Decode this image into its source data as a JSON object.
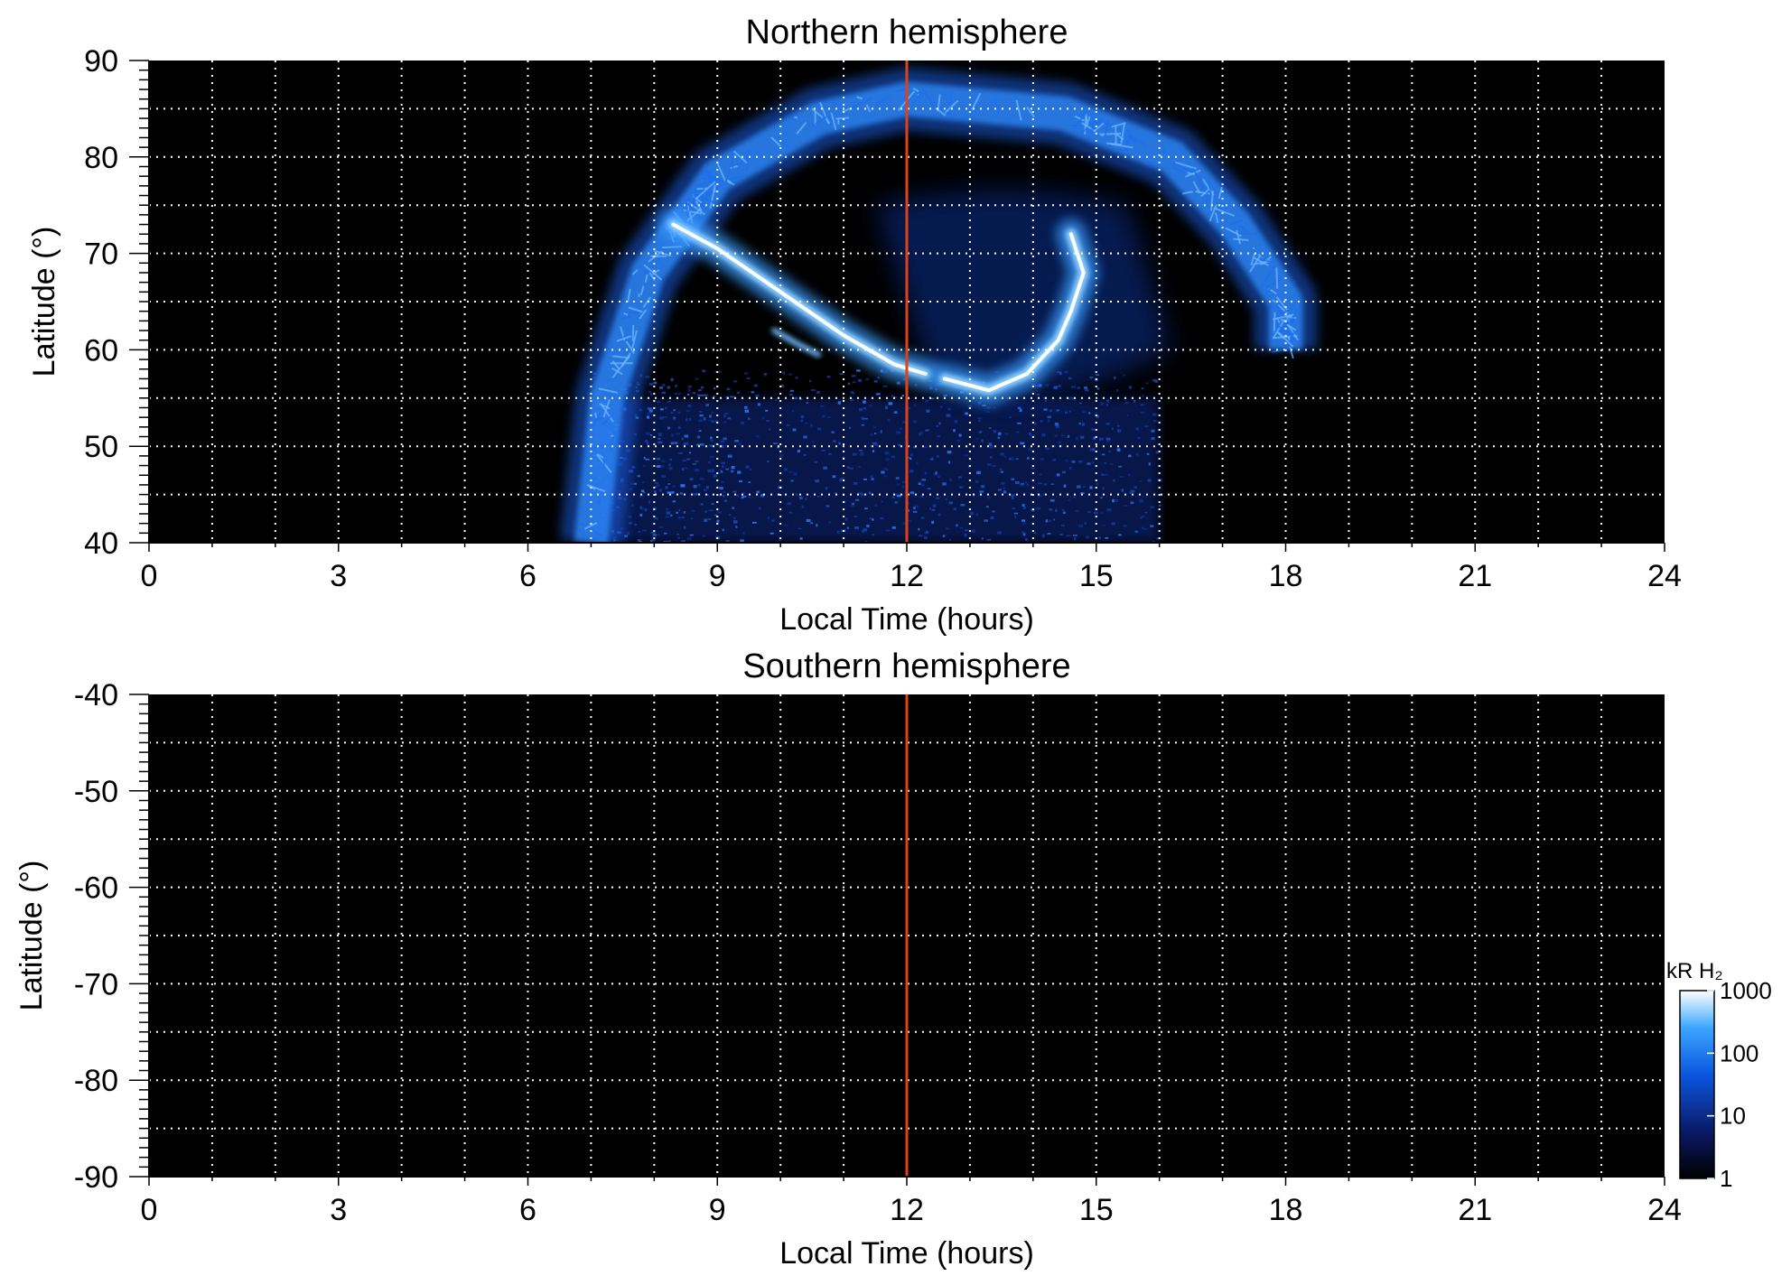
{
  "chart_data": [
    {
      "type": "heatmap",
      "title": "Northern hemisphere",
      "xlabel": "Local Time (hours)",
      "ylabel": "Latitude (°)",
      "xlim": [
        0,
        24
      ],
      "ylim": [
        40,
        90
      ],
      "xticks": [
        0,
        3,
        6,
        9,
        12,
        15,
        18,
        21,
        24
      ],
      "xtick_labels": [
        "0",
        "3",
        "6",
        "9",
        "12",
        "15",
        "18",
        "21",
        "24"
      ],
      "yticks": [
        40,
        50,
        60,
        70,
        80,
        90
      ],
      "ytick_labels": [
        "40",
        "50",
        "60",
        "70",
        "80",
        "90"
      ],
      "grid": true,
      "background": "#000000",
      "noon_line": {
        "x": 12,
        "color": "#e0401a"
      },
      "emission": {
        "polar_cap_ring": {
          "lt_range": [
            7,
            18
          ],
          "outer_lat": 86,
          "inner_lat": 55,
          "brightness_kR": 60
        },
        "main_oval_dawn_arc": [
          [
            8.3,
            73
          ],
          [
            9.0,
            70.5
          ],
          [
            10.0,
            66
          ],
          [
            11.0,
            61.5
          ],
          [
            11.8,
            58.5
          ],
          [
            12.3,
            57.5
          ]
        ],
        "main_oval_dusk_arc": [
          [
            12.6,
            57
          ],
          [
            13.3,
            55.8
          ],
          [
            13.9,
            57.5
          ],
          [
            14.4,
            61
          ],
          [
            14.6,
            64
          ],
          [
            14.8,
            68
          ],
          [
            14.6,
            72
          ]
        ],
        "peak_brightness_kR": 1000,
        "diffuse_lat_range": [
          40,
          55
        ]
      }
    },
    {
      "type": "heatmap",
      "title": "Southern hemisphere",
      "xlabel": "Local Time (hours)",
      "ylabel": "Latitude (°)",
      "xlim": [
        0,
        24
      ],
      "ylim": [
        -90,
        -40
      ],
      "xticks": [
        0,
        3,
        6,
        9,
        12,
        15,
        18,
        21,
        24
      ],
      "xtick_labels": [
        "0",
        "3",
        "6",
        "9",
        "12",
        "15",
        "18",
        "21",
        "24"
      ],
      "yticks": [
        -90,
        -80,
        -70,
        -60,
        -50,
        -40
      ],
      "ytick_labels": [
        "-90",
        "-80",
        "-70",
        "-60",
        "-50",
        "-40"
      ],
      "grid": true,
      "background": "#000000",
      "noon_line": {
        "x": 12,
        "color": "#e0401a"
      },
      "emission": null
    }
  ],
  "colorbar": {
    "label": "kR H₂",
    "scale": "log",
    "range": [
      1,
      1000
    ],
    "ticks": [
      1,
      10,
      100,
      1000
    ],
    "tick_labels": [
      "1",
      "10",
      "100",
      "1000"
    ],
    "colors": [
      "#000000",
      "#0a1a66",
      "#0a55dd",
      "#3aa6ff",
      "#ffffff"
    ]
  }
}
